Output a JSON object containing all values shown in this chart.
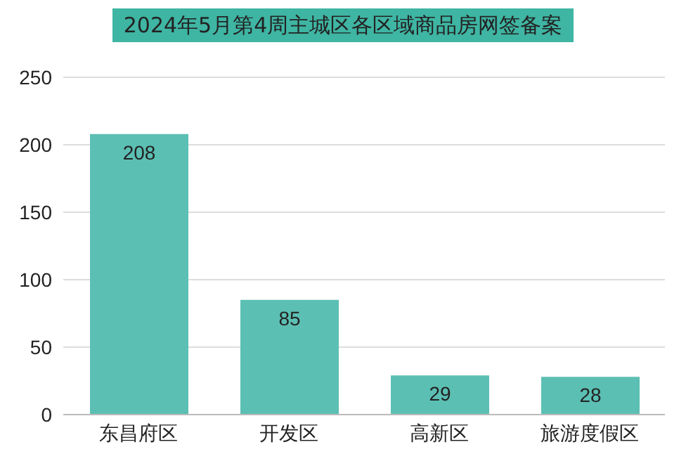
{
  "chart_data": {
    "type": "bar",
    "title": "2024年5月第4周主城区各区域商品房网签备案",
    "categories": [
      "东昌府区",
      "开发区",
      "高新区",
      "旅游度假区"
    ],
    "values": [
      208,
      85,
      29,
      28
    ],
    "color": "#5cbfb3",
    "ylim": [
      0,
      250
    ],
    "yticks": [
      0,
      50,
      100,
      150,
      200,
      250
    ],
    "grid": "y",
    "data_labels": true
  }
}
